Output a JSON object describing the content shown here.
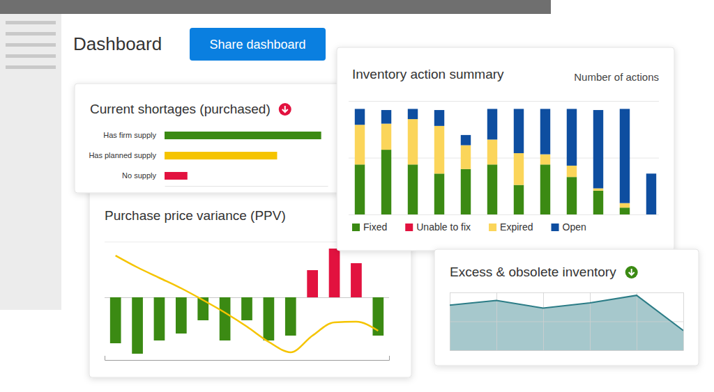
{
  "header": {
    "title": "Dashboard",
    "button": "Share dashboard"
  },
  "chart_data": [
    {
      "type": "bar",
      "title": "Current shortages (purchased)",
      "orientation": "horizontal",
      "categories": [
        "Has firm supply",
        "Has planned supply",
        "No supply"
      ],
      "values": [
        96,
        69,
        14
      ],
      "colors": [
        "#3b8a13",
        "#f5c400",
        "#e2123f"
      ],
      "xlim": [
        0,
        100
      ],
      "tick_labels": "y"
    },
    {
      "type": "bar",
      "title": "Inventory action summary",
      "subtitle": "Number of actions",
      "stacked": true,
      "categories": [
        null,
        null,
        null,
        null,
        null,
        null,
        null,
        null,
        null,
        null,
        null,
        null
      ],
      "series": [
        {
          "name": "Fixed",
          "color": "#3b8a13",
          "values": [
            44,
            57,
            44,
            36,
            40,
            44,
            26,
            44,
            33,
            21,
            6,
            0
          ]
        },
        {
          "name": "Unable to fix",
          "color": "#e2123f",
          "values": [
            0,
            0,
            0,
            0,
            0,
            0,
            0,
            0,
            0,
            0,
            0,
            0
          ]
        },
        {
          "name": "Expired",
          "color": "#fbd55a",
          "values": [
            35,
            23,
            40,
            42,
            21,
            22,
            28,
            9,
            10,
            2,
            4,
            0
          ]
        },
        {
          "name": "Open",
          "color": "#0e4ea0",
          "values": [
            14,
            12,
            9,
            14,
            9,
            27,
            39,
            40,
            50,
            69,
            83,
            36
          ]
        }
      ],
      "ylim": [
        0,
        100
      ],
      "yticks": [
        0,
        50,
        100
      ],
      "grid": true,
      "legend": "bottom",
      "tick_labels": false
    },
    {
      "type": "bar",
      "title": "Purchase price variance (PPV)",
      "categories": [
        null,
        null,
        null,
        null,
        null,
        null,
        null,
        null,
        null,
        null,
        null,
        null,
        null
      ],
      "series": [
        {
          "type": "bar",
          "colors": [
            "#3b8a13",
            "#3b8a13",
            "#3b8a13",
            "#3b8a13",
            "#3b8a13",
            "#3b8a13",
            "#3b8a13",
            "#3b8a13",
            "#3b8a13",
            "#e2123f",
            "#e2123f",
            "#e2123f",
            "#3b8a13"
          ],
          "values": [
            -66,
            -81,
            -62,
            -52,
            -33,
            -62,
            -33,
            -62,
            -55,
            39,
            70,
            49,
            -55
          ]
        },
        {
          "type": "line",
          "color": "#f5c400",
          "values": [
            60,
            43,
            28,
            13,
            -4,
            -22,
            -42,
            -64,
            -79,
            -55,
            -36,
            -35,
            -48
          ]
        }
      ],
      "ylim": [
        -90,
        80
      ],
      "yticks": [
        0,
        80
      ],
      "grid": true,
      "tick_labels": false
    },
    {
      "type": "area",
      "title": "Excess & obsolete inventory",
      "categories": [
        null,
        null,
        null,
        null,
        null,
        null
      ],
      "values": [
        78,
        86,
        73,
        82,
        95,
        34
      ],
      "color": "#2b7c86",
      "ylim": [
        0,
        100
      ],
      "yticks": [
        0,
        50,
        100
      ],
      "grid": true,
      "tick_labels": false
    }
  ]
}
